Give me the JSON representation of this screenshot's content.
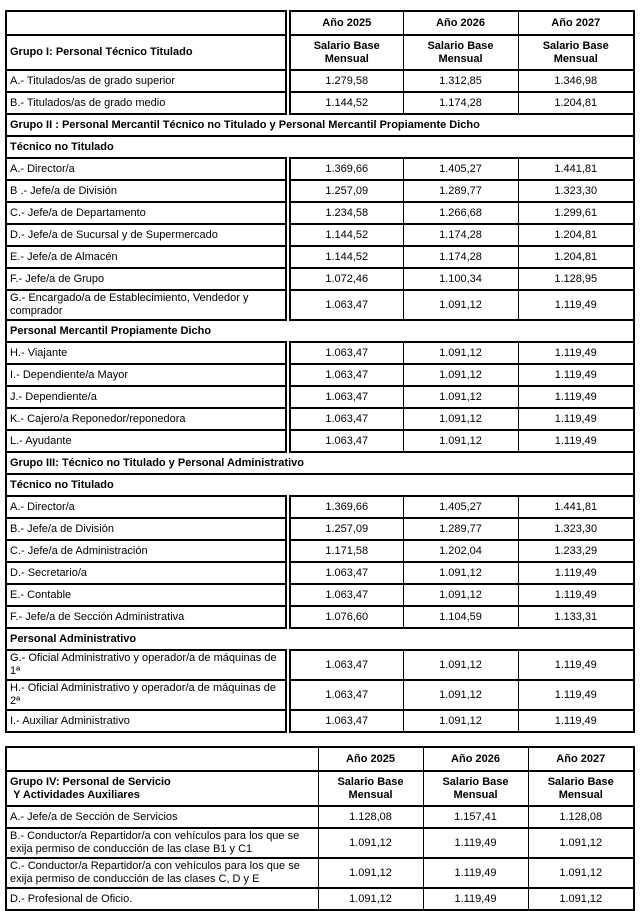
{
  "tables": [
    {
      "years": [
        "Año 2025",
        "Año 2026",
        "Año 2027"
      ],
      "group_title": "Grupo I: Personal Técnico Titulado",
      "salary_header": "Salario Base Mensual",
      "rows": [
        {
          "type": "data",
          "label": "A.- Titulados/as de grado superior",
          "values": [
            "1.279,58",
            "1.312,85",
            "1.346,98"
          ]
        },
        {
          "type": "data",
          "label": "B.- Titulados/as de grado medio",
          "values": [
            "1.144,52",
            "1.174,28",
            "1.204,81"
          ]
        },
        {
          "type": "section",
          "label": "Grupo II : Personal Mercantil Técnico no Titulado y Personal Mercantil Propiamente Dicho"
        },
        {
          "type": "section",
          "label": "Técnico no Titulado"
        },
        {
          "type": "data",
          "label": "A.- Director/a",
          "values": [
            "1.369,66",
            "1.405,27",
            "1.441,81"
          ]
        },
        {
          "type": "data",
          "label": "B .- Jefe/a de División",
          "values": [
            "1.257,09",
            "1.289,77",
            "1.323,30"
          ]
        },
        {
          "type": "data",
          "label": "C.- Jefe/a de Departamento",
          "values": [
            "1.234,58",
            "1.266,68",
            "1.299,61"
          ]
        },
        {
          "type": "data",
          "label": "D.- Jefe/a de Sucursal y de Supermercado",
          "values": [
            "1.144,52",
            "1.174,28",
            "1.204,81"
          ]
        },
        {
          "type": "data",
          "label": "E.- Jefe/a de Almacén",
          "values": [
            "1.144,52",
            "1.174,28",
            "1.204,81"
          ]
        },
        {
          "type": "data",
          "label": "F.- Jefe/a de Grupo",
          "values": [
            "1.072,46",
            "1.100,34",
            "1.128,95"
          ]
        },
        {
          "type": "data",
          "label": "G.- Encargado/a de Establecimiento, Vendedor y comprador",
          "values": [
            "1.063,47",
            "1.091,12",
            "1.119,49"
          ]
        },
        {
          "type": "section",
          "label": "Personal Mercantil Propiamente Dicho"
        },
        {
          "type": "data",
          "label": "H.- Viajante",
          "values": [
            "1.063,47",
            "1.091,12",
            "1.119,49"
          ]
        },
        {
          "type": "data",
          "label": "I.- Dependiente/a Mayor",
          "values": [
            "1.063,47",
            "1.091,12",
            "1.119,49"
          ]
        },
        {
          "type": "data",
          "label": "J.- Dependiente/a",
          "values": [
            "1.063,47",
            "1.091,12",
            "1.119,49"
          ]
        },
        {
          "type": "data",
          "label": "K.- Cajero/a Reponedor/reponedora",
          "values": [
            "1.063,47",
            "1.091,12",
            "1.119,49"
          ]
        },
        {
          "type": "data",
          "label": "L.- Ayudante",
          "values": [
            "1.063,47",
            "1.091,12",
            "1.119,49"
          ]
        },
        {
          "type": "section",
          "label": "Grupo III: Técnico no Titulado y Personal Administrativo"
        },
        {
          "type": "section",
          "label": "Técnico no Titulado"
        },
        {
          "type": "data",
          "label": "A.- Director/a",
          "values": [
            "1.369,66",
            "1.405,27",
            "1.441,81"
          ]
        },
        {
          "type": "data",
          "label": "B.- Jefe/a de División",
          "values": [
            "1.257,09",
            "1.289,77",
            "1.323,30"
          ]
        },
        {
          "type": "data",
          "label": "C.- Jefe/a de Administración",
          "values": [
            "1.171,58",
            "1.202,04",
            "1.233,29"
          ]
        },
        {
          "type": "data",
          "label": "D.- Secretario/a",
          "values": [
            "1.063,47",
            "1.091,12",
            "1.119,49"
          ]
        },
        {
          "type": "data",
          "label": "E.- Contable",
          "values": [
            "1.063,47",
            "1.091,12",
            "1.119,49"
          ]
        },
        {
          "type": "data",
          "label": "F.- Jefe/a de Sección Administrativa",
          "values": [
            "1.076,60",
            "1.104,59",
            "1.133,31"
          ]
        },
        {
          "type": "section",
          "label": "Personal Administrativo"
        },
        {
          "type": "data",
          "label": "G.- Oficial Administrativo y operador/a de máquinas de 1ª",
          "values": [
            "1.063,47",
            "1.091,12",
            "1.119,49"
          ]
        },
        {
          "type": "data",
          "label": "H.- Oficial Administrativo y operador/a de máquinas de 2ª",
          "values": [
            "1.063,47",
            "1.091,12",
            "1.119,49"
          ]
        },
        {
          "type": "data",
          "label": "I.- Auxiliar Administrativo",
          "values": [
            "1.063,47",
            "1.091,12",
            "1.119,49"
          ]
        }
      ]
    },
    {
      "years": [
        "Año 2025",
        "Año 2026",
        "Año 2027"
      ],
      "group_title": "Grupo IV: Personal de Servicio\n Y Actividades Auxiliares",
      "salary_header": "Salario Base Mensual",
      "rows": [
        {
          "type": "data",
          "label": "A.- Jefe/a de Sección de Servicios",
          "values": [
            "1.128,08",
            "1.157,41",
            "1.128,08"
          ]
        },
        {
          "type": "data",
          "label": "B.- Conductor/a Repartidor/a con vehículos para los que se exija permiso de conducción de las clase B1 y C1",
          "values": [
            "1.091,12",
            "1.119,49",
            "1.091,12"
          ]
        },
        {
          "type": "data",
          "label": "C.- Conductor/a Repartidor/a con vehículos para los que se exija permiso de conducción de las clases C, D y E",
          "values": [
            "1.091,12",
            "1.119,49",
            "1.091,12"
          ]
        },
        {
          "type": "data",
          "label": "D.- Profesional de Oficio.",
          "values": [
            "1.091,12",
            "1.119,49",
            "1.091,12"
          ]
        }
      ]
    }
  ]
}
